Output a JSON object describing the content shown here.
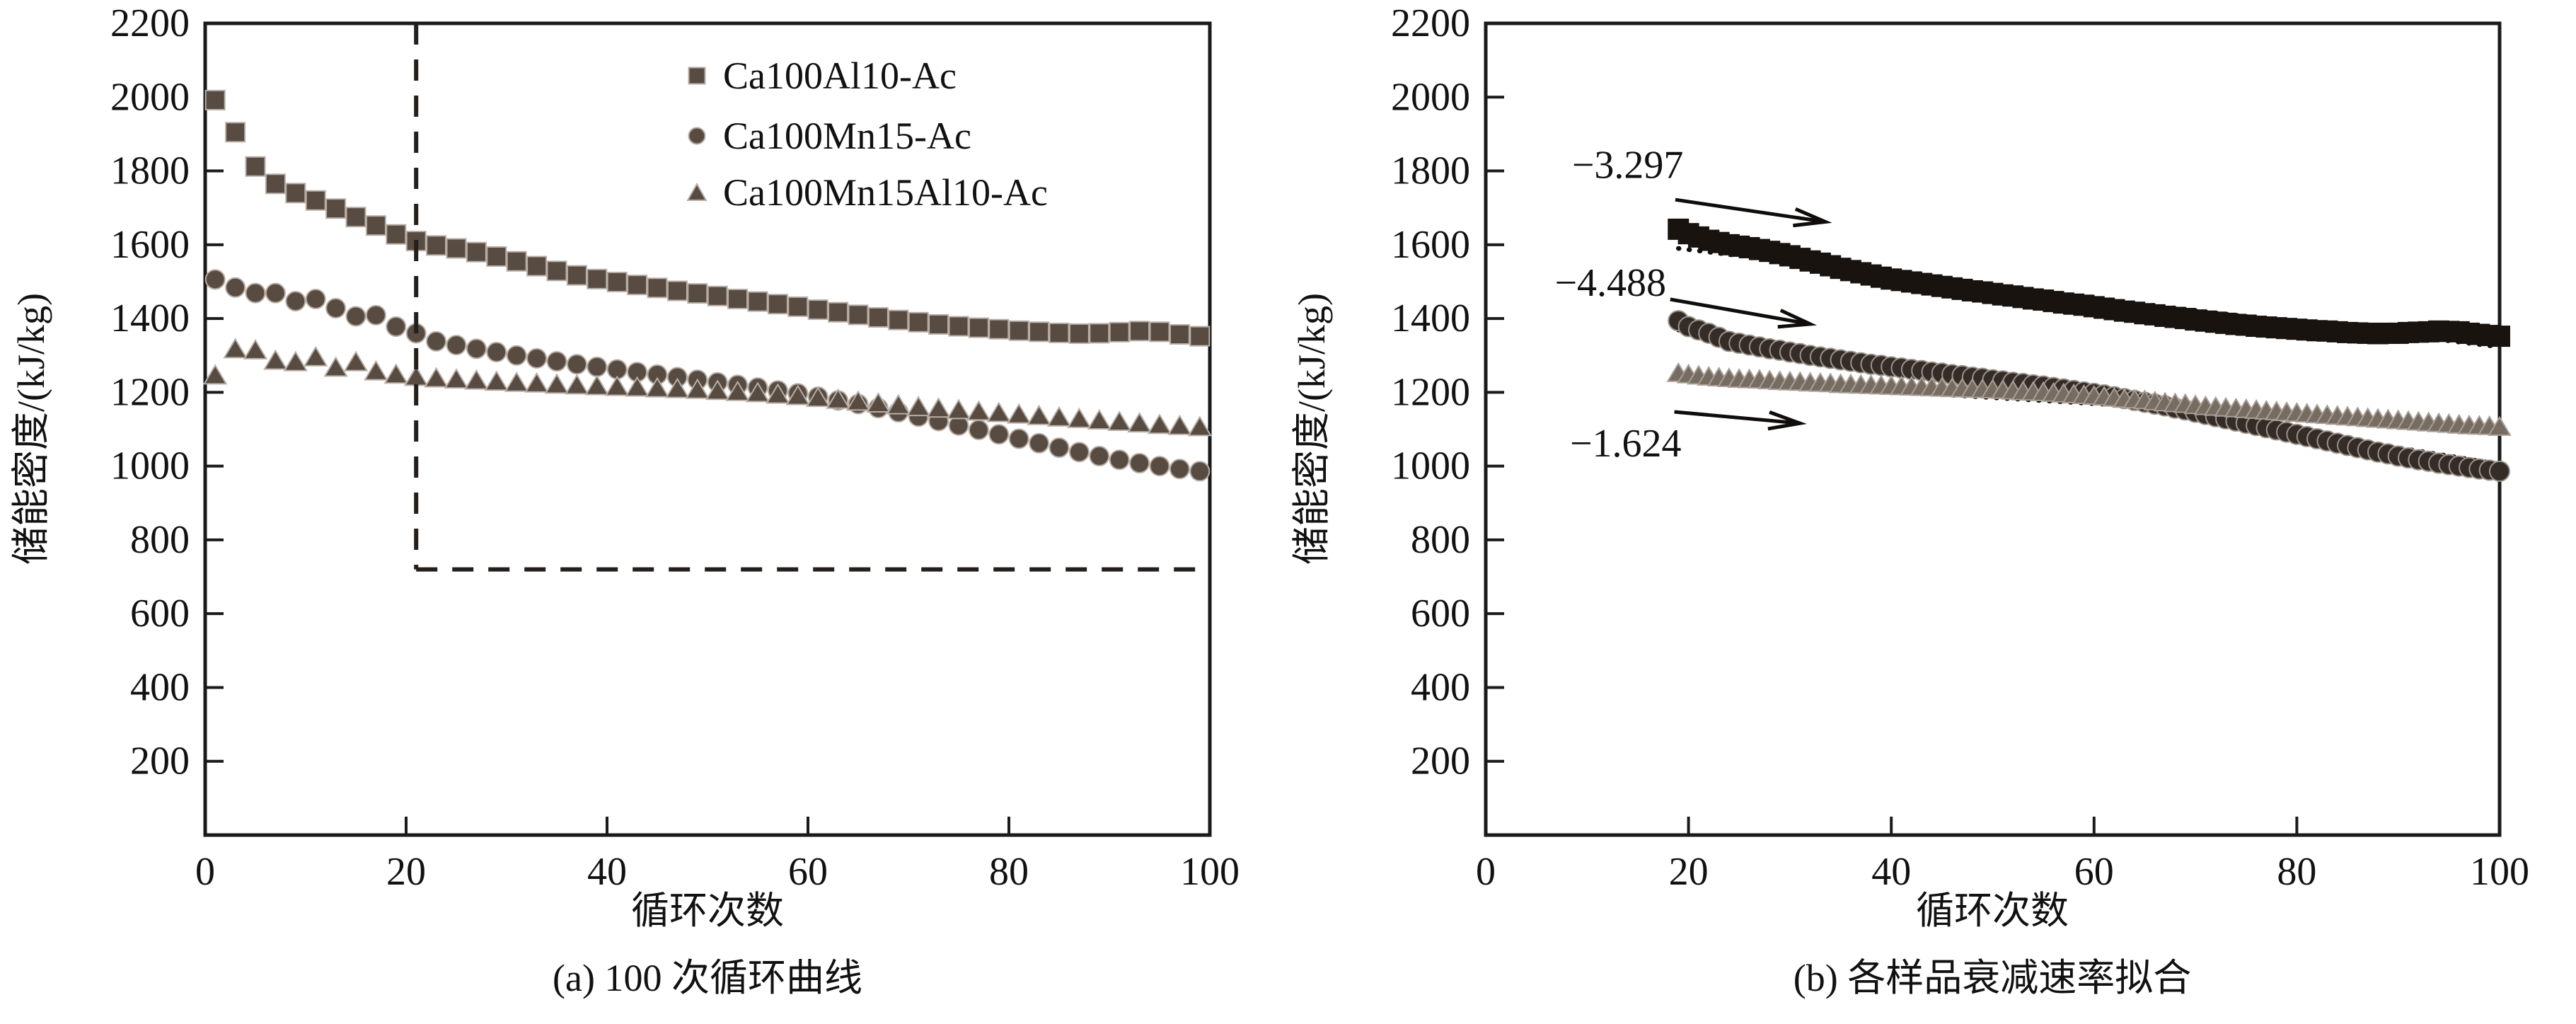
{
  "figure": {
    "background": "#ffffff",
    "axis_color": "#1a1a1a",
    "marker_color_panel_a": "#584c42",
    "marker_halo_panel_a": "#b7aea6",
    "fit_line_color": "#0f0c0a",
    "dashed_guide_color": "#241f1b"
  },
  "chart_data": [
    {
      "id": "panel_a",
      "type": "scatter",
      "caption": "(a) 100 次循环曲线",
      "xlabel": "循环次数",
      "ylabel": "储能密度/(kJ/kg)",
      "xlim": [
        0,
        100
      ],
      "ylim": [
        0,
        2200
      ],
      "xticks": [
        0,
        20,
        40,
        60,
        80,
        100
      ],
      "yticks": [
        200,
        400,
        600,
        800,
        1000,
        1200,
        1400,
        1600,
        1800,
        2000,
        2200
      ],
      "grid": false,
      "legend_position": "upper-right-inside",
      "series": [
        {
          "name": "Ca100Al10-Ac",
          "marker": "square",
          "color": "#584c42",
          "stroke": "#b7aea6",
          "x": [
            1,
            3,
            5,
            7,
            9,
            11,
            13,
            15,
            17,
            19,
            21,
            23,
            25,
            27,
            29,
            31,
            33,
            35,
            37,
            39,
            41,
            43,
            45,
            47,
            49,
            51,
            53,
            55,
            57,
            59,
            61,
            63,
            65,
            67,
            69,
            71,
            73,
            75,
            77,
            79,
            81,
            83,
            85,
            87,
            89,
            91,
            93,
            95,
            97,
            99
          ],
          "y": [
            1992,
            1905,
            1812,
            1765,
            1740,
            1720,
            1698,
            1675,
            1652,
            1628,
            1610,
            1598,
            1590,
            1580,
            1568,
            1555,
            1542,
            1529,
            1517,
            1507,
            1499,
            1491,
            1483,
            1475,
            1468,
            1461,
            1453,
            1446,
            1439,
            1432,
            1424,
            1417,
            1410,
            1403,
            1396,
            1390,
            1384,
            1379,
            1375,
            1371,
            1367,
            1364,
            1361,
            1359,
            1360,
            1363,
            1366,
            1364,
            1357,
            1352
          ]
        },
        {
          "name": "Ca100Mn15-Ac",
          "marker": "circle",
          "color": "#584c42",
          "stroke": "#b7aea6",
          "x": [
            1,
            3,
            5,
            7,
            9,
            11,
            13,
            15,
            17,
            19,
            21,
            23,
            25,
            27,
            29,
            31,
            33,
            35,
            37,
            39,
            41,
            43,
            45,
            47,
            49,
            51,
            53,
            55,
            57,
            59,
            61,
            63,
            65,
            67,
            69,
            71,
            73,
            75,
            77,
            79,
            81,
            83,
            85,
            87,
            89,
            91,
            93,
            95,
            97,
            99
          ],
          "y": [
            1506,
            1484,
            1469,
            1469,
            1447,
            1453,
            1428,
            1406,
            1409,
            1378,
            1360,
            1338,
            1328,
            1318,
            1309,
            1300,
            1292,
            1284,
            1276,
            1269,
            1262,
            1255,
            1248,
            1241,
            1234,
            1227,
            1220,
            1213,
            1205,
            1197,
            1188,
            1178,
            1168,
            1157,
            1146,
            1134,
            1122,
            1110,
            1098,
            1086,
            1074,
            1062,
            1050,
            1038,
            1027,
            1017,
            1008,
            1000,
            992,
            986
          ]
        },
        {
          "name": "Ca100Mn15Al10-Ac",
          "marker": "triangle",
          "color": "#584c42",
          "stroke": "#b7aea6",
          "x": [
            1,
            3,
            5,
            7,
            9,
            11,
            13,
            15,
            17,
            19,
            21,
            23,
            25,
            27,
            29,
            31,
            33,
            35,
            37,
            39,
            41,
            43,
            45,
            47,
            49,
            51,
            53,
            55,
            57,
            59,
            61,
            63,
            65,
            67,
            69,
            71,
            73,
            75,
            77,
            79,
            81,
            83,
            85,
            87,
            89,
            91,
            93,
            95,
            97,
            99
          ],
          "y": [
            1248,
            1319,
            1316,
            1288,
            1284,
            1297,
            1269,
            1284,
            1259,
            1250,
            1244,
            1240,
            1237,
            1234,
            1231,
            1228,
            1226,
            1223,
            1221,
            1219,
            1217,
            1215,
            1213,
            1211,
            1209,
            1206,
            1203,
            1200,
            1196,
            1192,
            1187,
            1182,
            1177,
            1172,
            1167,
            1162,
            1158,
            1154,
            1150,
            1146,
            1142,
            1138,
            1134,
            1130,
            1126,
            1122,
            1118,
            1114,
            1111,
            1108
          ]
        }
      ],
      "dashed_guides": {
        "vline": {
          "x": 21,
          "y_from": 720,
          "y_to": 2200
        },
        "hline": {
          "y": 720,
          "x_from": 21,
          "x_to": 100
        }
      }
    },
    {
      "id": "panel_b",
      "type": "scatter",
      "caption": "(b) 各样品衰减速率拟合",
      "xlabel": "循环次数",
      "ylabel": "储能密度/(kJ/kg)",
      "xlim": [
        0,
        100
      ],
      "ylim": [
        0,
        2200
      ],
      "xticks": [
        0,
        20,
        40,
        60,
        80,
        100
      ],
      "yticks": [
        200,
        400,
        600,
        800,
        1000,
        1200,
        1400,
        1600,
        1800,
        2000,
        2200
      ],
      "grid": false,
      "series": [
        {
          "name": "Ca100Al10-Ac",
          "marker": "square",
          "color": "#18130f",
          "stroke": "none",
          "x": [
            19,
            20,
            21,
            22,
            23,
            24,
            25,
            26,
            27,
            28,
            29,
            30,
            31,
            32,
            33,
            34,
            35,
            36,
            37,
            38,
            39,
            40,
            41,
            42,
            43,
            44,
            45,
            46,
            47,
            48,
            49,
            50,
            51,
            52,
            53,
            54,
            55,
            56,
            57,
            58,
            59,
            60,
            61,
            62,
            63,
            64,
            65,
            66,
            67,
            68,
            69,
            70,
            71,
            72,
            73,
            74,
            75,
            76,
            77,
            78,
            79,
            80,
            81,
            82,
            83,
            84,
            85,
            86,
            87,
            88,
            89,
            90,
            91,
            92,
            93,
            94,
            95,
            96,
            97,
            98,
            99,
            100
          ],
          "y": [
            1642,
            1630,
            1621,
            1612,
            1606,
            1600,
            1596,
            1592,
            1587,
            1582,
            1576,
            1570,
            1563,
            1556,
            1550,
            1543,
            1536,
            1530,
            1524,
            1518,
            1512,
            1507,
            1503,
            1499,
            1495,
            1491,
            1487,
            1483,
            1479,
            1475,
            1472,
            1468,
            1464,
            1461,
            1457,
            1453,
            1450,
            1446,
            1442,
            1439,
            1436,
            1432,
            1428,
            1424,
            1420,
            1417,
            1413,
            1410,
            1406,
            1403,
            1400,
            1396,
            1393,
            1390,
            1387,
            1384,
            1382,
            1379,
            1377,
            1375,
            1373,
            1371,
            1369,
            1367,
            1366,
            1364,
            1362,
            1361,
            1360,
            1359,
            1360,
            1360,
            1362,
            1363,
            1364,
            1366,
            1365,
            1364,
            1360,
            1357,
            1354,
            1352
          ]
        },
        {
          "name": "Ca100Mn15-Ac",
          "marker": "circle",
          "color": "#342d27",
          "stroke": "#9b928a",
          "x": [
            19,
            20,
            21,
            22,
            23,
            24,
            25,
            26,
            27,
            28,
            29,
            30,
            31,
            32,
            33,
            34,
            35,
            36,
            37,
            38,
            39,
            40,
            41,
            42,
            43,
            44,
            45,
            46,
            47,
            48,
            49,
            50,
            51,
            52,
            53,
            54,
            55,
            56,
            57,
            58,
            59,
            60,
            61,
            62,
            63,
            64,
            65,
            66,
            67,
            68,
            69,
            70,
            71,
            72,
            73,
            74,
            75,
            76,
            77,
            78,
            79,
            80,
            81,
            82,
            83,
            84,
            85,
            86,
            87,
            88,
            89,
            90,
            91,
            92,
            93,
            94,
            95,
            96,
            97,
            98,
            99,
            100
          ],
          "y": [
            1394,
            1378,
            1369,
            1360,
            1349,
            1338,
            1333,
            1328,
            1323,
            1318,
            1314,
            1309,
            1305,
            1300,
            1296,
            1292,
            1288,
            1284,
            1280,
            1276,
            1273,
            1269,
            1266,
            1262,
            1259,
            1255,
            1252,
            1248,
            1245,
            1241,
            1238,
            1234,
            1231,
            1227,
            1224,
            1220,
            1217,
            1213,
            1209,
            1205,
            1201,
            1197,
            1193,
            1188,
            1183,
            1178,
            1173,
            1168,
            1163,
            1157,
            1152,
            1146,
            1140,
            1134,
            1128,
            1122,
            1116,
            1110,
            1104,
            1098,
            1092,
            1086,
            1080,
            1074,
            1068,
            1062,
            1056,
            1050,
            1044,
            1038,
            1033,
            1027,
            1022,
            1017,
            1013,
            1008,
            1004,
            1000,
            996,
            992,
            989,
            986
          ]
        },
        {
          "name": "Ca100Mn15Al10-Ac",
          "marker": "triangle",
          "color": "#776c61",
          "stroke": "#a89f96",
          "x": [
            19,
            20,
            21,
            22,
            23,
            24,
            25,
            26,
            27,
            28,
            29,
            30,
            31,
            32,
            33,
            34,
            35,
            36,
            37,
            38,
            39,
            40,
            41,
            42,
            43,
            44,
            45,
            46,
            47,
            48,
            49,
            50,
            51,
            52,
            53,
            54,
            55,
            56,
            57,
            58,
            59,
            60,
            61,
            62,
            63,
            64,
            65,
            66,
            67,
            68,
            69,
            70,
            71,
            72,
            73,
            74,
            75,
            76,
            77,
            78,
            79,
            80,
            81,
            82,
            83,
            84,
            85,
            86,
            87,
            88,
            89,
            90,
            91,
            92,
            93,
            94,
            95,
            96,
            97,
            98,
            99,
            100
          ],
          "y": [
            1254,
            1250,
            1247,
            1244,
            1242,
            1240,
            1238,
            1237,
            1236,
            1234,
            1232,
            1231,
            1230,
            1228,
            1227,
            1226,
            1224,
            1223,
            1222,
            1221,
            1220,
            1219,
            1218,
            1217,
            1216,
            1215,
            1214,
            1213,
            1212,
            1211,
            1210,
            1209,
            1208,
            1206,
            1204,
            1203,
            1202,
            1200,
            1198,
            1196,
            1194,
            1192,
            1190,
            1187,
            1184,
            1182,
            1180,
            1177,
            1174,
            1172,
            1170,
            1167,
            1164,
            1162,
            1160,
            1158,
            1156,
            1154,
            1152,
            1150,
            1148,
            1146,
            1144,
            1142,
            1140,
            1138,
            1136,
            1134,
            1132,
            1130,
            1128,
            1126,
            1124,
            1122,
            1120,
            1118,
            1116,
            1114,
            1112,
            1111,
            1110,
            1108
          ]
        }
      ],
      "fit_lines": [
        {
          "series": "Ca100Al10-Ac",
          "slope_label": "−3.297",
          "x1": 19,
          "y1": 1590,
          "x2": 100,
          "y2": 1323
        },
        {
          "series": "Ca100Mn15-Ac",
          "slope_label": "−4.488",
          "x1": 19,
          "y1": 1369,
          "x2": 100,
          "y2": 1005
        },
        {
          "series": "Ca100Mn15Al10-Ac",
          "slope_label": "−1.624",
          "x1": 19,
          "y1": 1236,
          "x2": 100,
          "y2": 1104
        }
      ],
      "annotations": [
        {
          "text": "−3.297",
          "x": 14,
          "y": 1815,
          "arrow": {
            "x1": 18.7,
            "y1": 1722,
            "x2": 33.5,
            "y2": 1662
          }
        },
        {
          "text": "−4.488",
          "x": 12.3,
          "y": 1496,
          "arrow": {
            "x1": 18.2,
            "y1": 1452,
            "x2": 32,
            "y2": 1385
          }
        },
        {
          "text": "−1.624",
          "x": 13.8,
          "y": 1061,
          "arrow": {
            "x1": 18.6,
            "y1": 1147,
            "x2": 31,
            "y2": 1116
          }
        }
      ]
    }
  ]
}
